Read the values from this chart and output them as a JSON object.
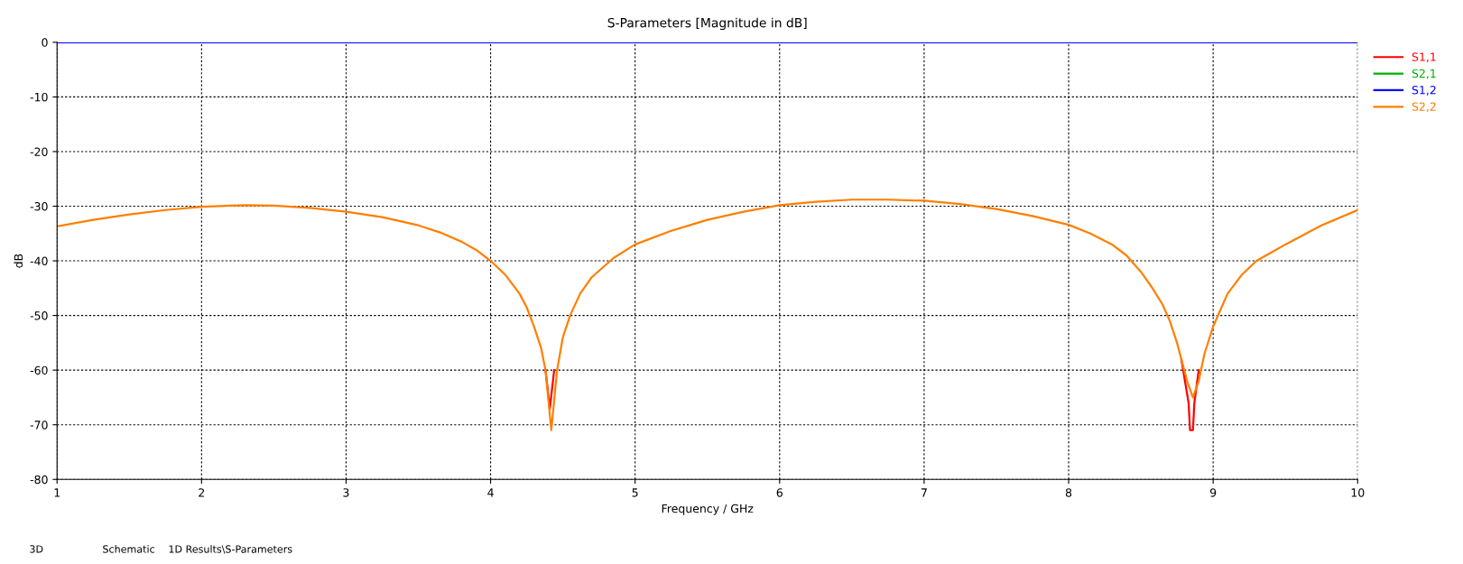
{
  "chart_data": {
    "type": "line",
    "title": "S-Parameters [Magnitude in dB]",
    "xlabel": "Frequency / GHz",
    "ylabel": "dB",
    "xlim": [
      1,
      10
    ],
    "xticks": [
      1,
      2,
      3,
      4,
      5,
      6,
      7,
      8,
      9,
      10
    ],
    "ylim": [
      -80,
      0
    ],
    "yticks": [
      -80,
      -70,
      -60,
      -50,
      -40,
      -30,
      -20,
      -10,
      0
    ],
    "grid": true,
    "legend": "top right",
    "line_style": "solid",
    "marker": "none",
    "series": [
      {
        "name": "S1,1",
        "color": "#ff0000",
        "x": [
          4.38,
          4.41,
          4.44,
          4.5,
          8.78,
          8.83,
          8.84,
          8.86,
          8.87,
          8.9
        ],
        "values": [
          -60,
          -67,
          -60,
          null,
          -58,
          -66,
          -71,
          -71,
          -66,
          -60
        ]
      },
      {
        "name": "S2,1",
        "color": "#00b000"
      },
      {
        "name": "S1,2",
        "color": "#0000ff",
        "x": [
          1,
          10
        ],
        "values": [
          0,
          0
        ]
      },
      {
        "name": "S2,2",
        "color": "#ff7f00",
        "x": [
          1,
          1.25,
          1.5,
          1.75,
          2,
          2.3,
          2.5,
          2.75,
          3,
          3.25,
          3.5,
          3.65,
          3.8,
          3.9,
          4,
          4.1,
          4.2,
          4.25,
          4.3,
          4.35,
          4.38,
          4.42,
          4.46,
          4.5,
          4.55,
          4.62,
          4.7,
          4.85,
          5,
          5.25,
          5.5,
          5.75,
          6,
          6.25,
          6.5,
          6.75,
          7,
          7.25,
          7.5,
          7.75,
          8,
          8.15,
          8.3,
          8.4,
          8.5,
          8.58,
          8.65,
          8.7,
          8.75,
          8.79,
          8.82,
          8.86,
          8.9,
          8.94,
          9,
          9.05,
          9.1,
          9.2,
          9.3,
          9.4,
          9.5,
          9.75,
          10
        ],
        "values": [
          -33.7,
          -32.5,
          -31.5,
          -30.7,
          -30.1,
          -29.8,
          -29.9,
          -30.3,
          -31,
          -32,
          -33.5,
          -34.8,
          -36.5,
          -38,
          -40,
          -42.5,
          -46,
          -48.5,
          -52,
          -56,
          -60,
          -71,
          -60,
          -54,
          -50,
          -46,
          -43,
          -39.5,
          -37,
          -34.5,
          -32.5,
          -31,
          -29.8,
          -29.2,
          -28.8,
          -28.8,
          -29,
          -29.6,
          -30.5,
          -31.8,
          -33.4,
          -35,
          -37,
          -39,
          -42,
          -45,
          -48,
          -51,
          -55,
          -59,
          -62,
          -65,
          -62,
          -57,
          -52,
          -49,
          -46,
          -42.5,
          -40,
          -38.5,
          -37,
          -33.5,
          -30.7
        ]
      }
    ],
    "annotations": [
      "3D",
      "Schematic",
      "1D Results\\S-Parameters"
    ]
  }
}
